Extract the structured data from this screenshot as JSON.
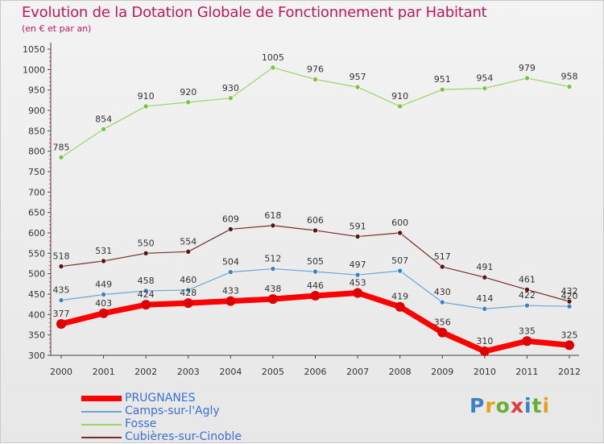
{
  "header": {
    "title": "Evolution de la Dotation Globale de Fonctionnement par Habitant",
    "subtitle": "(en € et par an)"
  },
  "logo": {
    "text": "Proxiti",
    "letter_colors": [
      "#3b82c4",
      "#e6a11a",
      "#66b032",
      "#e23b3b",
      "#3b82c4",
      "#66b032",
      "#e6a11a"
    ]
  },
  "chart_data": {
    "type": "line",
    "x": [
      "2000",
      "2001",
      "2002",
      "2003",
      "2004",
      "2005",
      "2006",
      "2007",
      "2008",
      "2009",
      "2010",
      "2011",
      "2012"
    ],
    "ylim": [
      300,
      1050
    ],
    "yticks": [
      300,
      350,
      400,
      450,
      500,
      550,
      600,
      650,
      700,
      750,
      800,
      850,
      900,
      950,
      1000,
      1050
    ],
    "grid": false,
    "legend_position": "bottom-left",
    "series": [
      {
        "name": "PRUGNANES",
        "color": "#ff0000",
        "marker_color": "#dd0000",
        "width": 7,
        "marker_r": 6,
        "values": [
          377,
          403,
          424,
          428,
          433,
          438,
          446,
          453,
          419,
          356,
          310,
          335,
          325
        ]
      },
      {
        "name": "Camps-sur-l'Agly",
        "color": "#6aa5d8",
        "marker_color": "#3b82c4",
        "width": 1.2,
        "marker_r": 3,
        "values": [
          435,
          449,
          458,
          460,
          504,
          512,
          505,
          497,
          507,
          430,
          414,
          422,
          420
        ]
      },
      {
        "name": "Fosse",
        "color": "#9ad36a",
        "marker_color": "#7cc243",
        "width": 1.2,
        "marker_r": 3,
        "values": [
          785,
          854,
          910,
          920,
          930,
          1005,
          976,
          957,
          910,
          951,
          954,
          979,
          958
        ]
      },
      {
        "name": "Cubières-sur-Cinoble",
        "color": "#7a2a2a",
        "marker_color": "#5a1414",
        "width": 1.2,
        "marker_r": 3,
        "values": [
          518,
          531,
          550,
          554,
          609,
          618,
          606,
          591,
          600,
          517,
          491,
          461,
          432
        ]
      }
    ]
  }
}
